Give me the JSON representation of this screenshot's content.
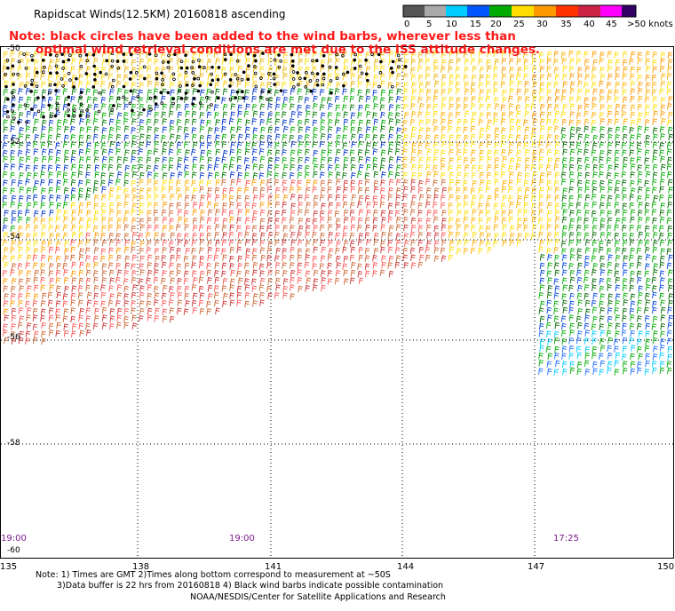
{
  "title": "Rapidscat Winds(12.5KM) 20160818 ascending",
  "note": {
    "line1": "Note: black circles have been added to the wind barbs, wherever less than",
    "line2": "optimal wind retrieval conditions are met due to the ISS attitude changes."
  },
  "colorbar": {
    "labels": [
      "0",
      "5",
      "10",
      "15",
      "20",
      "25",
      "30",
      "35",
      "40",
      "45",
      ">50 knots"
    ],
    "colors": [
      "#555555",
      "#aaaaaa",
      "#00ccff",
      "#0055ff",
      "#00aa00",
      "#ffdd00",
      "#ff9900",
      "#ff3300",
      "#cc2244",
      "#ff00ff",
      "#330066"
    ]
  },
  "latitudes": [
    "-50",
    "-52",
    "-54",
    "-56",
    "-58",
    "-60"
  ],
  "longitudes": [
    "135",
    "138",
    "141",
    "144",
    "147",
    "150"
  ],
  "times": [
    "19:00",
    "19:00",
    "17:25"
  ],
  "footer": {
    "line1": "Note: 1) Times are GMT 2)Times along bottom correspond to measurement at ~50S",
    "line2": "3)Data buffer is 22 hrs from 20160818 4) Black wind barbs indicate possible contamination",
    "line3": "NOAA/NESDIS/Center for Satellite Applications and Research"
  }
}
